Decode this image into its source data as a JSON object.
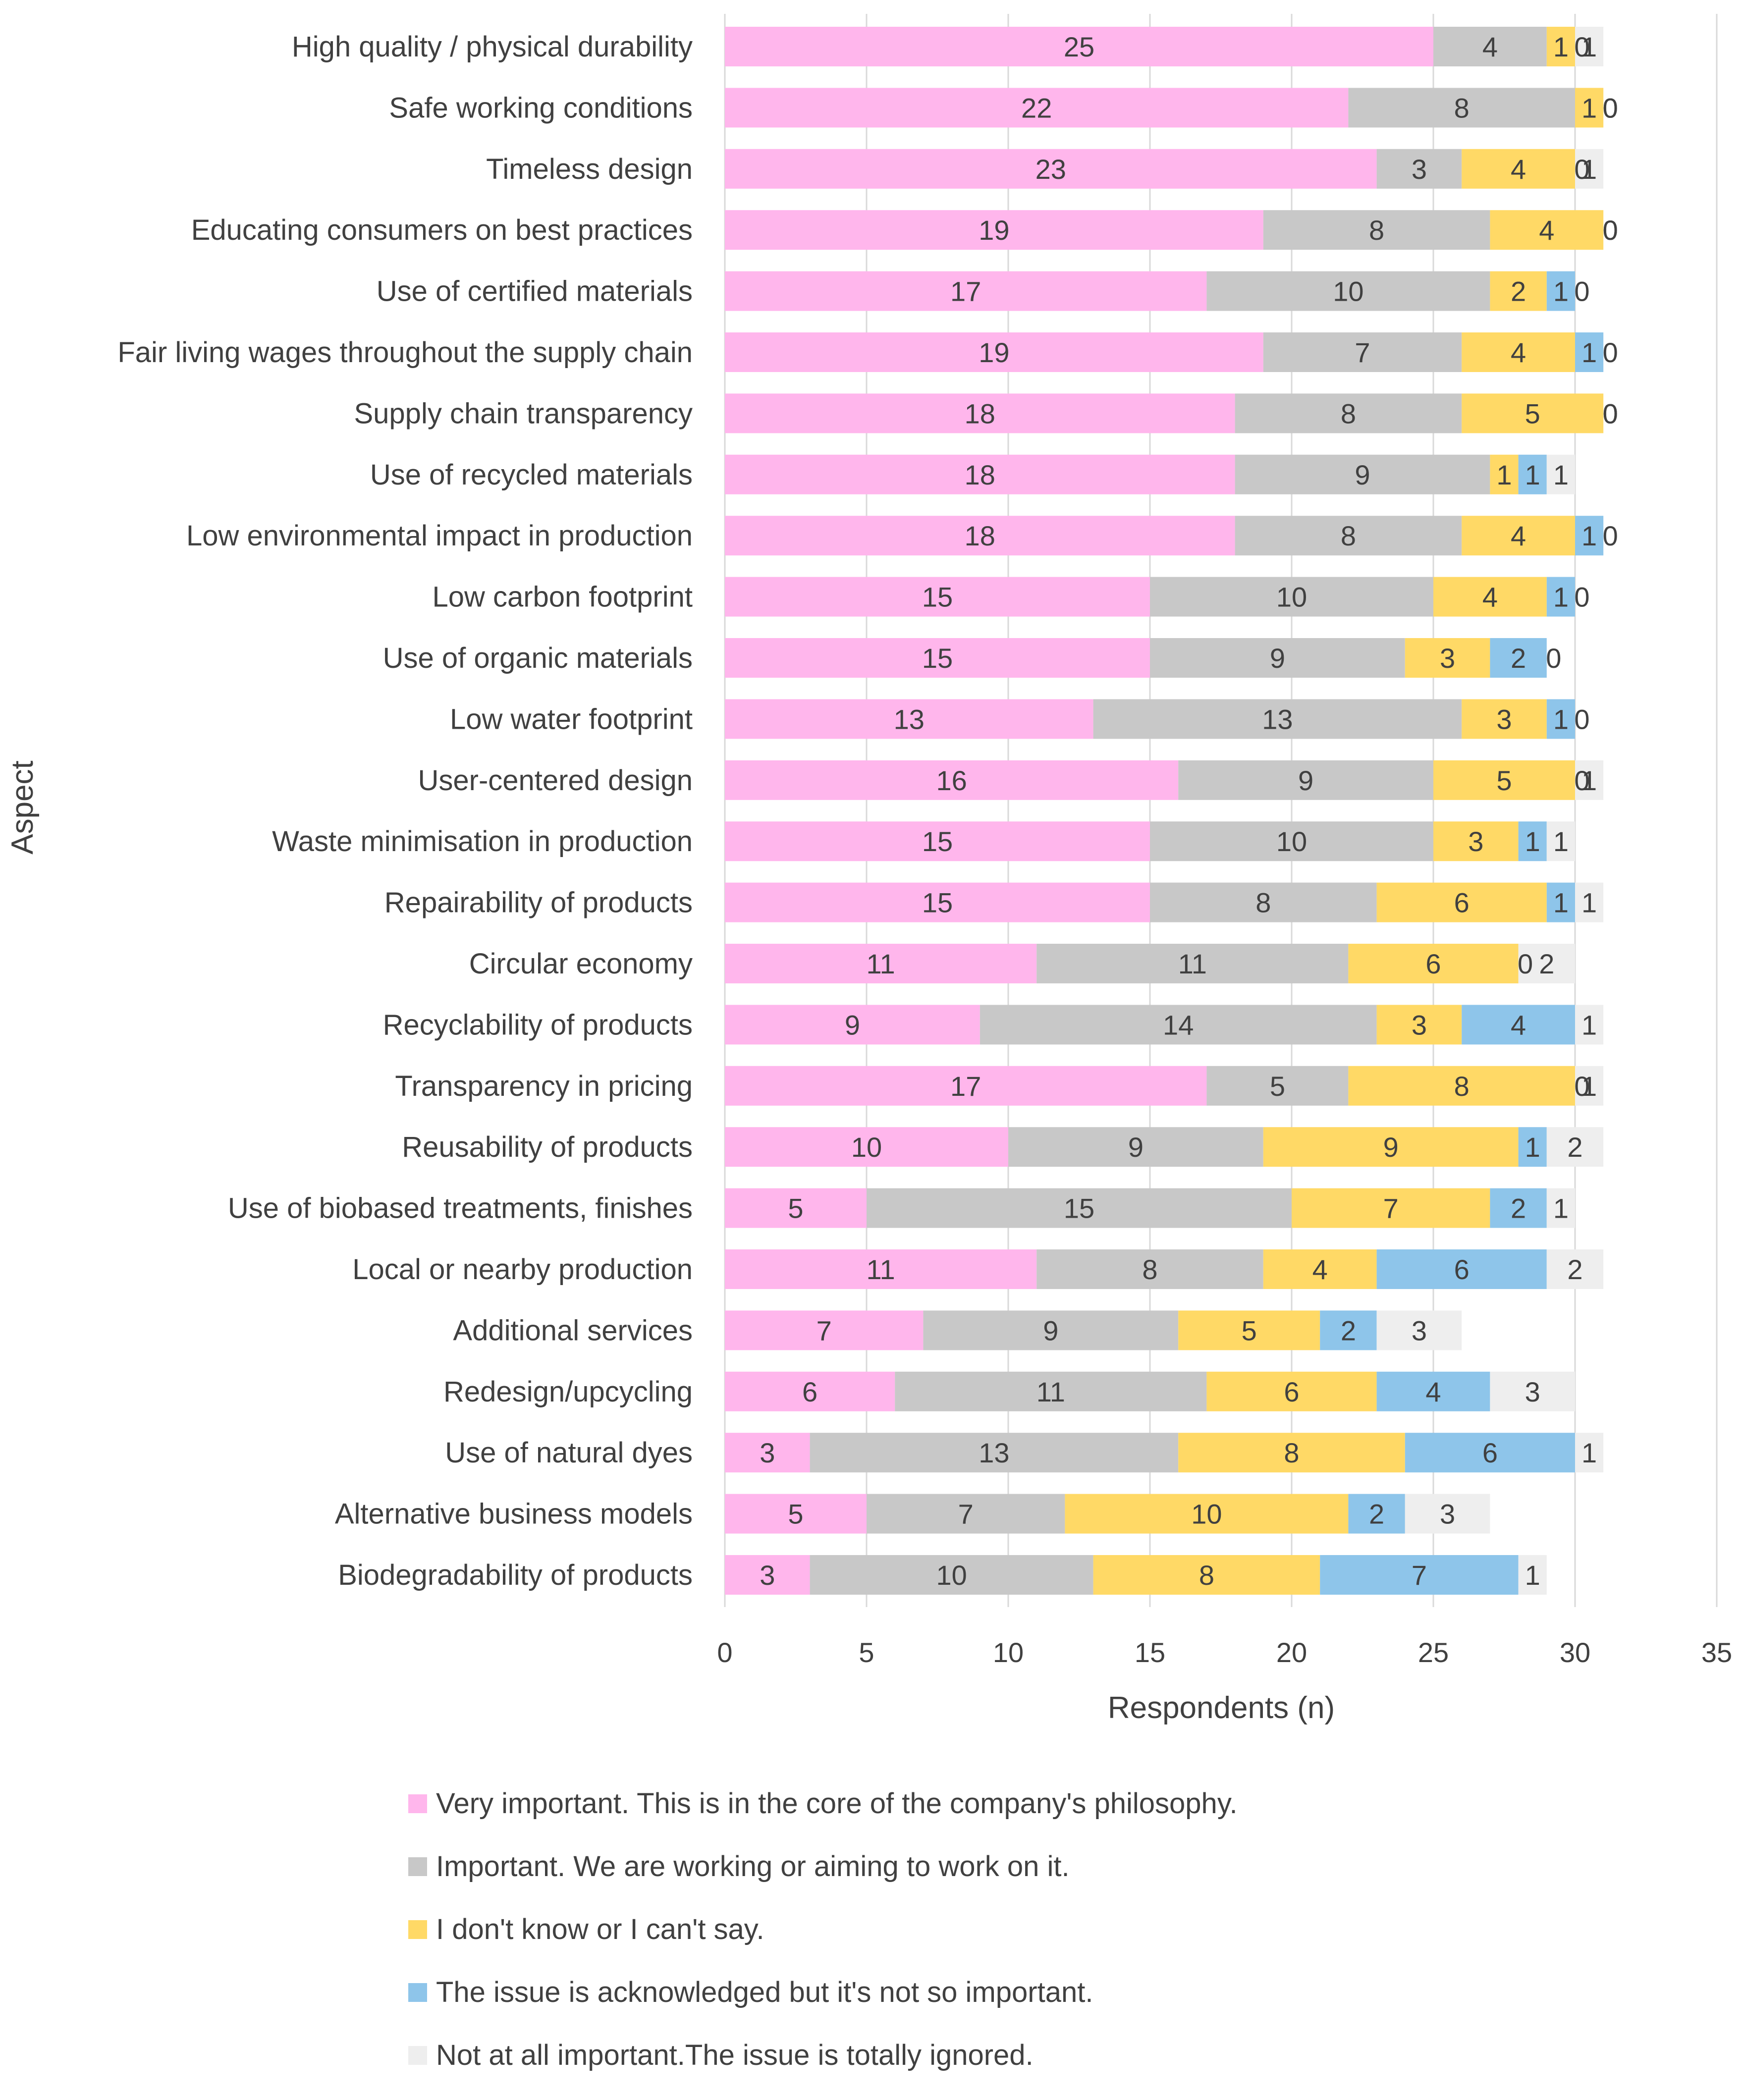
{
  "chart_data": {
    "type": "bar",
    "orientation": "horizontal",
    "stacked": true,
    "title": "",
    "xlabel": "Respondents (n)",
    "ylabel": "Aspect",
    "xlim": [
      0,
      35
    ],
    "xticks": [
      0,
      5,
      10,
      15,
      20,
      25,
      30,
      35
    ],
    "grid": true,
    "legend_position": "bottom",
    "categories": [
      "High quality / physical durability",
      "Safe working conditions",
      "Timeless design",
      "Educating consumers on best practices",
      "Use of certified materials",
      "Fair living wages throughout the supply chain",
      "Supply chain transparency",
      "Use of recycled materials",
      "Low environmental impact in production",
      "Low carbon footprint",
      "Use of organic materials",
      "Low water footprint",
      "User-centered design",
      "Waste minimisation in production",
      "Repairability of products",
      "Circular economy",
      "Recyclability of products",
      "Transparency in pricing",
      "Reusability of products",
      "Use of biobased treatments, finishes",
      "Local or nearby production",
      "Additional services",
      "Redesign/upcycling",
      "Use of natural dyes",
      "Alternative business models",
      "Biodegradability of products"
    ],
    "series": [
      {
        "name": "Very important. This is in the core of the company's philosophy.",
        "color": "#FFB6EC",
        "values": [
          25,
          22,
          23,
          19,
          17,
          19,
          18,
          18,
          18,
          15,
          15,
          13,
          16,
          15,
          15,
          11,
          9,
          17,
          10,
          5,
          11,
          7,
          6,
          3,
          5,
          3
        ]
      },
      {
        "name": "Important. We are working or aiming to work on it.",
        "color": "#C8C8C8",
        "values": [
          4,
          8,
          3,
          8,
          10,
          7,
          8,
          9,
          8,
          10,
          9,
          13,
          9,
          10,
          8,
          11,
          14,
          5,
          9,
          15,
          8,
          9,
          11,
          13,
          7,
          10
        ]
      },
      {
        "name": "I don't know or I can't say.",
        "color": "#FFD966",
        "values": [
          1,
          1,
          4,
          4,
          2,
          4,
          5,
          1,
          4,
          4,
          3,
          3,
          5,
          3,
          6,
          6,
          3,
          8,
          9,
          7,
          4,
          5,
          6,
          8,
          10,
          8
        ]
      },
      {
        "name": "The issue is acknowledged but it's not so important.",
        "color": "#8EC5EA",
        "values": [
          0,
          0,
          0,
          0,
          1,
          1,
          0,
          1,
          1,
          1,
          2,
          1,
          0,
          1,
          1,
          0,
          4,
          0,
          1,
          2,
          6,
          2,
          4,
          6,
          2,
          7
        ]
      },
      {
        "name": "Not at all important.The issue is totally ignored.",
        "color": "#EEEEEE",
        "values": [
          1,
          0,
          1,
          0,
          0,
          0,
          0,
          1,
          0,
          0,
          0,
          0,
          1,
          1,
          1,
          2,
          1,
          1,
          2,
          1,
          2,
          3,
          3,
          1,
          3,
          1
        ]
      }
    ]
  }
}
